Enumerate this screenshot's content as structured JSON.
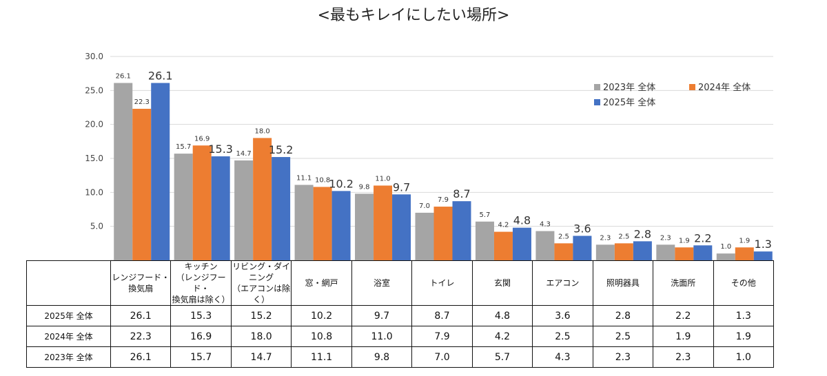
{
  "title": "<最もキレイにしたい場所>",
  "colors": {
    "2023": "#a5a5a5",
    "2024": "#ed7d31",
    "2025": "#4472c4"
  },
  "chart_data": {
    "type": "bar",
    "title": "<最もキレイにしたい場所>",
    "categories": [
      "レンジフード・\n換気扇",
      "キッチン\n（レンジフード・\n換気扇は除く）",
      "リビング・ダイニング\n（エアコンは除く）",
      "窓・網戸",
      "浴室",
      "トイレ",
      "玄関",
      "エアコン",
      "照明器具",
      "洗面所",
      "その他"
    ],
    "series": [
      {
        "name": "2023年 全体",
        "color": "#a5a5a5",
        "values": [
          26.1,
          15.7,
          14.7,
          11.1,
          9.8,
          7.0,
          5.7,
          4.3,
          2.3,
          2.3,
          1.0
        ]
      },
      {
        "name": "2024年 全体",
        "color": "#ed7d31",
        "values": [
          22.3,
          16.9,
          18.0,
          10.8,
          11.0,
          7.9,
          4.2,
          2.5,
          2.5,
          1.9,
          1.9
        ]
      },
      {
        "name": "2025年 全体",
        "color": "#4472c4",
        "values": [
          26.1,
          15.3,
          15.2,
          10.2,
          9.7,
          8.7,
          4.8,
          3.6,
          2.8,
          2.2,
          1.3
        ]
      }
    ],
    "yticks": [
      "5.0",
      "10.0",
      "15.0",
      "20.0",
      "25.0",
      "30.0"
    ],
    "ylim": [
      0,
      30
    ],
    "grid": true,
    "legend": "top-right"
  },
  "table": {
    "rows": [
      {
        "label": "2025年 全体",
        "values": [
          "26.1",
          "15.3",
          "15.2",
          "10.2",
          "9.7",
          "8.7",
          "4.8",
          "3.6",
          "2.8",
          "2.2",
          "1.3"
        ]
      },
      {
        "label": "2024年 全体",
        "values": [
          "22.3",
          "16.9",
          "18.0",
          "10.8",
          "11.0",
          "7.9",
          "4.2",
          "2.5",
          "2.5",
          "1.9",
          "1.9"
        ]
      },
      {
        "label": "2023年 全体",
        "values": [
          "26.1",
          "15.7",
          "14.7",
          "11.1",
          "9.8",
          "7.0",
          "5.7",
          "4.3",
          "2.3",
          "2.3",
          "1.0"
        ]
      }
    ]
  }
}
